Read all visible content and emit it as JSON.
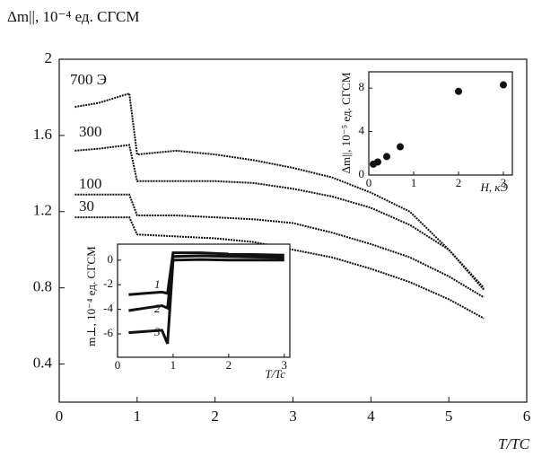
{
  "chart_data": [
    {
      "type": "line",
      "y_label": "Δm||, 10⁻⁴ ед. СГСМ",
      "x_label": "T/TC",
      "xlim": [
        0,
        6
      ],
      "xticks": [
        0,
        1,
        2,
        3,
        4,
        5,
        6
      ],
      "ylim": [
        0.2,
        2.0
      ],
      "yticks": [
        0.4,
        0.8,
        1.2,
        1.6,
        2.0
      ],
      "color": "#111",
      "x": [
        0.2,
        0.5,
        0.9,
        1.0,
        1.5,
        2,
        2.5,
        3,
        3.5,
        4,
        4.5,
        5,
        5.45
      ],
      "series": [
        {
          "name": "700 Э",
          "values": [
            1.75,
            1.77,
            1.82,
            1.5,
            1.52,
            1.5,
            1.47,
            1.43,
            1.38,
            1.3,
            1.2,
            1.0,
            0.8
          ]
        },
        {
          "name": "300",
          "values": [
            1.52,
            1.53,
            1.55,
            1.36,
            1.36,
            1.36,
            1.35,
            1.32,
            1.28,
            1.22,
            1.13,
            1.0,
            0.79
          ]
        },
        {
          "name": "100",
          "values": [
            1.29,
            1.29,
            1.29,
            1.18,
            1.18,
            1.17,
            1.16,
            1.14,
            1.09,
            1.03,
            0.96,
            0.86,
            0.75
          ]
        },
        {
          "name": "30",
          "values": [
            1.17,
            1.17,
            1.17,
            1.08,
            1.07,
            1.06,
            1.04,
            1.0,
            0.96,
            0.9,
            0.83,
            0.74,
            0.64
          ]
        }
      ]
    },
    {
      "type": "scatter",
      "y_label": "Δm||, 10⁻⁵ ед. СГСМ",
      "x_label": "H, кЭ",
      "xlim": [
        0,
        3.2
      ],
      "xticks": [
        0,
        1,
        2,
        3
      ],
      "ylim": [
        0,
        9.5
      ],
      "yticks": [
        0,
        4,
        8
      ],
      "color": "#111",
      "x": [
        0.1,
        0.2,
        0.4,
        0.7,
        2,
        3
      ],
      "values": [
        1.0,
        1.2,
        1.7,
        2.6,
        7.7,
        8.3
      ]
    },
    {
      "type": "line",
      "y_label": "m⊥, 10⁻⁴ ед. СГСМ",
      "x_label": "T/Tc",
      "xlim": [
        0,
        3.1
      ],
      "xticks": [
        0,
        1,
        2,
        3
      ],
      "ylim": [
        -7.9,
        1.3
      ],
      "yticks": [
        -6,
        -4,
        -2,
        0
      ],
      "color": "#111",
      "x": [
        0.2,
        0.5,
        0.8,
        0.9,
        1.0,
        1.5,
        2,
        2.5,
        3
      ],
      "series": [
        {
          "name": "1",
          "values": [
            -2.8,
            -2.7,
            -2.6,
            -2.7,
            0.6,
            0.6,
            0.5,
            0.45,
            0.4
          ]
        },
        {
          "name": "2",
          "values": [
            -4.1,
            -3.9,
            -3.7,
            -3.9,
            0.3,
            0.35,
            0.3,
            0.25,
            0.2
          ]
        },
        {
          "name": "3",
          "values": [
            -5.9,
            -5.8,
            -5.7,
            -6.8,
            0.0,
            0.05,
            0.0,
            0.0,
            0.0
          ]
        }
      ]
    }
  ]
}
